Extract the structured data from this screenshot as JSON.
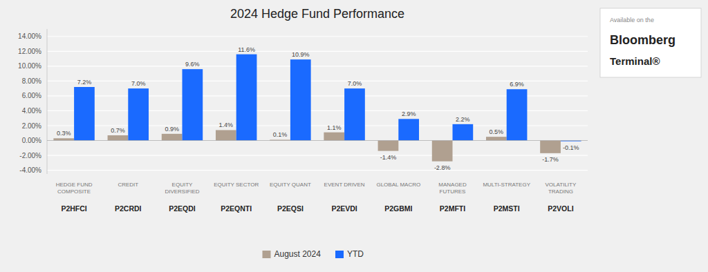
{
  "chart_data": {
    "type": "bar",
    "title": "2024 Hedge Fund Performance",
    "categories": [
      "HEDGE FUND\nCOMPOSITE\nP2HFCI",
      "CREDIT\nP2CRDI",
      "EQUITY\nDIVERSIFIED\nP2EQDI",
      "EQUITY SECTOR\nP2EQNTI",
      "EQUITY QUANT\nP2EQSI",
      "EVENT DRIVEN\nP2EVDI",
      "GLOBAL MACRO\nP2GBMI",
      "MANAGED\nFUTURES\nP2MFTI",
      "MULTI-STRATEGY\nP2MSTI",
      "VOLATILITY\nTRADING\nP2VOLI"
    ],
    "series": [
      {
        "name": "August 2024",
        "color": "#b0a090",
        "values": [
          0.3,
          0.7,
          0.9,
          1.4,
          0.1,
          1.1,
          -1.4,
          -2.8,
          0.5,
          -1.7
        ],
        "value_labels": [
          "0.3%",
          "0.7%",
          "0.9%",
          "1.4%",
          "0.1%",
          "1.1%",
          "-1.4%",
          "-2.8%",
          "0.5%",
          "-1.7%"
        ]
      },
      {
        "name": "YTD",
        "color": "#1a6aff",
        "values": [
          7.2,
          7.0,
          9.6,
          11.6,
          10.9,
          7.0,
          2.9,
          2.2,
          6.9,
          -0.1
        ],
        "value_labels": [
          "7.2%",
          "7.0%",
          "9.6%",
          "11.6%",
          "10.9%",
          "7.0%",
          "2.9%",
          "2.2%",
          "6.9%",
          "-0.1%"
        ]
      }
    ],
    "ylim": [
      -4.5,
      15.0
    ],
    "yticks": [
      {
        "value": -4.0,
        "label": "-4.00%"
      },
      {
        "value": -2.0,
        "label": "-2.00%"
      },
      {
        "value": 0.0,
        "label": "0.00%"
      },
      {
        "value": 2.0,
        "label": "2.00%"
      },
      {
        "value": 4.0,
        "label": "4.00%"
      },
      {
        "value": 6.0,
        "label": "6.00%"
      },
      {
        "value": 8.0,
        "label": "8.00%"
      },
      {
        "value": 10.0,
        "label": "10.00%"
      },
      {
        "value": 12.0,
        "label": "12.00%"
      },
      {
        "value": 14.0,
        "label": "14.00%"
      }
    ],
    "grid": true,
    "legend": "bottom",
    "data_labels": true,
    "annotations": [
      "Available on the",
      "Bloomberg",
      "Terminal®"
    ]
  }
}
